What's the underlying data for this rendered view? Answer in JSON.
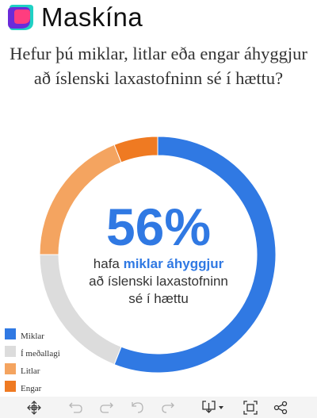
{
  "brand": {
    "name": "Maskína"
  },
  "question": "Hefur þú miklar, litlar eða engar áhyggjur að íslenski laxastofninn sé í hættu?",
  "center": {
    "percent_label": "56%",
    "line1_prefix": "hafa ",
    "line1_highlight": "miklar áhyggjur",
    "line2": "að íslenski laxastofninn",
    "line3": "sé í hættu"
  },
  "legend": [
    {
      "label": "Miklar",
      "color": "#3079e3"
    },
    {
      "label": "Í meðallagi",
      "color": "#dcdcdc"
    },
    {
      "label": "Litlar",
      "color": "#f4a460"
    },
    {
      "label": "Engar",
      "color": "#ef7a22"
    }
  ],
  "chart_data": {
    "type": "pie",
    "style": "donut",
    "categories": [
      "Miklar",
      "Í meðallagi",
      "Litlar",
      "Engar"
    ],
    "values": [
      56,
      19,
      19,
      6
    ],
    "colors": [
      "#3079e3",
      "#dcdcdc",
      "#f4a460",
      "#ef7a22"
    ],
    "legend_position": "bottom-left"
  },
  "toolbar": {
    "icons": [
      "move-icon",
      "undo-icon",
      "redo-icon",
      "reset-icon",
      "redo-alt-icon",
      "download-icon",
      "fullscreen-icon",
      "share-icon"
    ]
  }
}
